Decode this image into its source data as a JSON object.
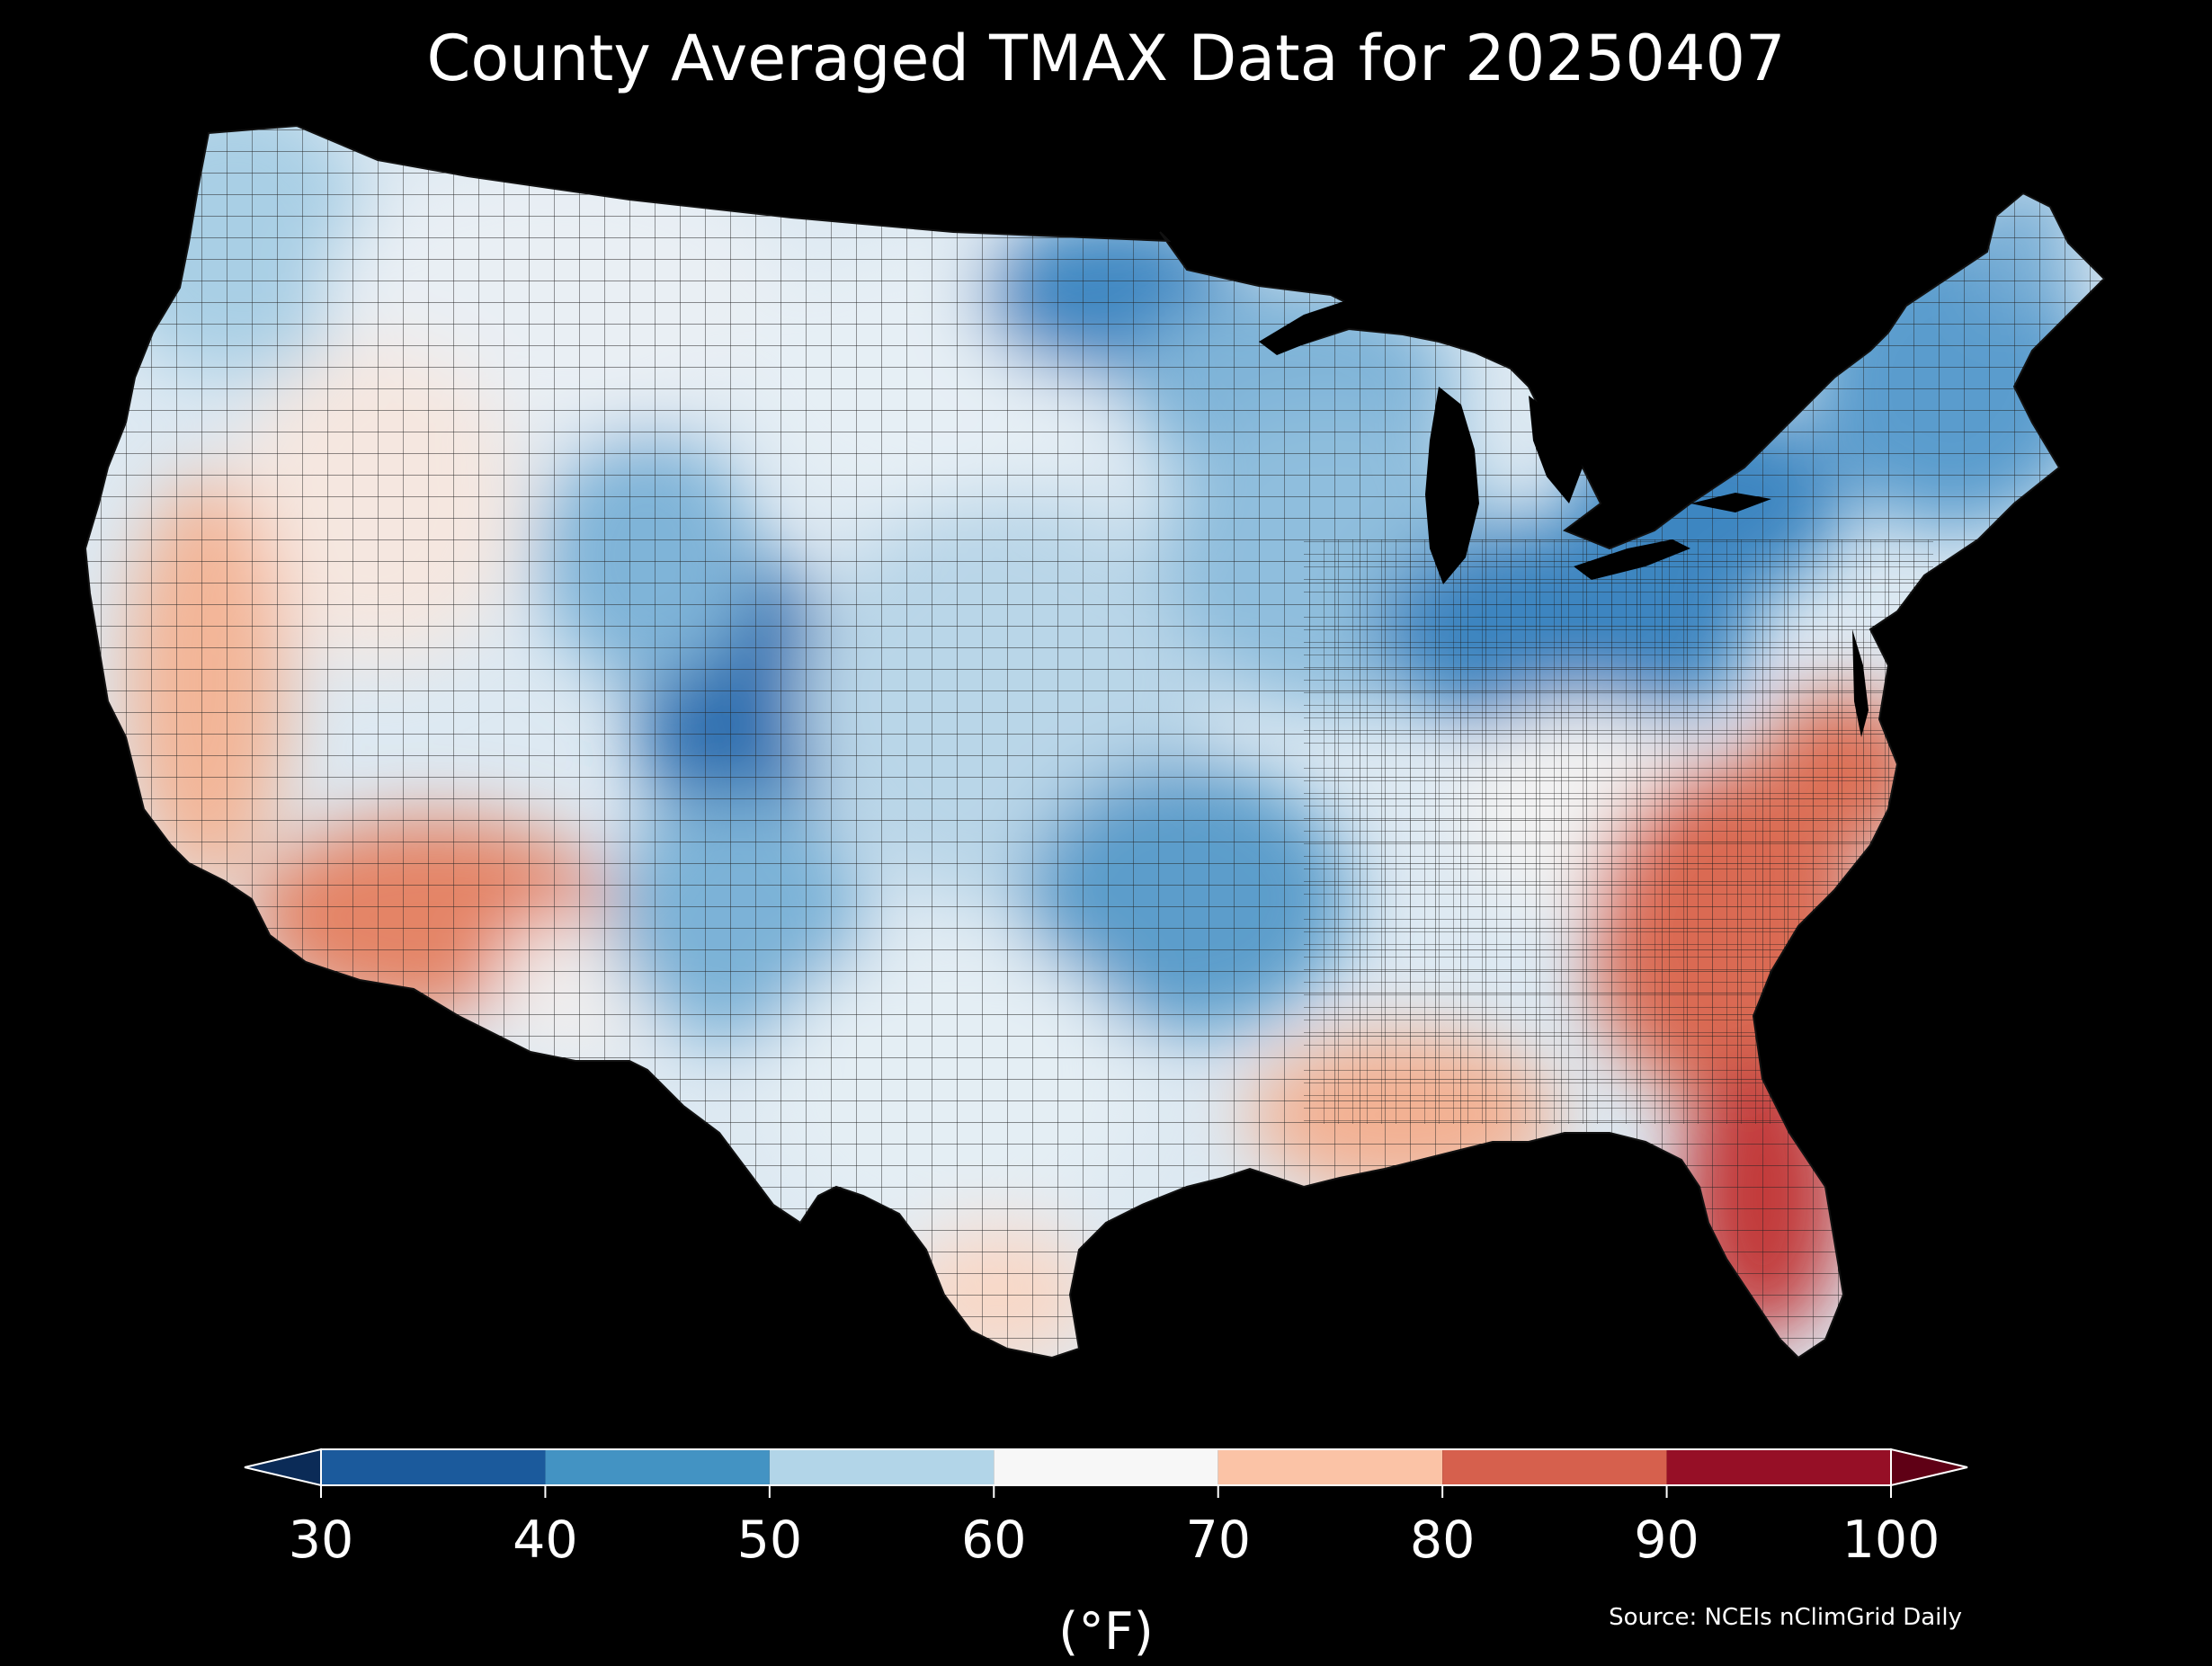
{
  "title": "County Averaged TMAX Data for 20250407",
  "colorbar": {
    "unit_label": "(°F)",
    "ticks": [
      "30",
      "40",
      "50",
      "60",
      "70",
      "80",
      "90",
      "100"
    ],
    "bins": [
      {
        "from": 30,
        "to": 40,
        "color": "#1b5a9c"
      },
      {
        "from": 40,
        "to": 50,
        "color": "#4393c3"
      },
      {
        "from": 50,
        "to": 60,
        "color": "#b2d5e8"
      },
      {
        "from": 60,
        "to": 70,
        "color": "#f7f7f7"
      },
      {
        "from": 70,
        "to": 80,
        "color": "#fbc3a6"
      },
      {
        "from": 80,
        "to": 90,
        "color": "#d6604d"
      },
      {
        "from": 90,
        "to": 100,
        "color": "#960f26"
      }
    ],
    "under_color": "#0b2b57",
    "over_color": "#5f0015"
  },
  "source": "Source: NCEIs nClimGrid Daily",
  "map": {
    "background": "#000000",
    "regions": [
      {
        "name": "pacific-northwest",
        "tmax": 52,
        "color": "#a9cfe5"
      },
      {
        "name": "northern-rockies",
        "tmax": 63,
        "color": "#e8eff5"
      },
      {
        "name": "california-coast",
        "tmax": 74,
        "color": "#f6c1a6"
      },
      {
        "name": "desert-southwest",
        "tmax": 84,
        "color": "#e08062"
      },
      {
        "name": "colorado-rockies",
        "tmax": 38,
        "color": "#2c6fb0"
      },
      {
        "name": "great-plains",
        "tmax": 57,
        "color": "#c9e0ee"
      },
      {
        "name": "upper-midwest",
        "tmax": 43,
        "color": "#3e86c1"
      },
      {
        "name": "ohio-valley",
        "tmax": 45,
        "color": "#4b93c7"
      },
      {
        "name": "northeast",
        "tmax": 46,
        "color": "#5a9ccd"
      },
      {
        "name": "texas-gulf",
        "tmax": 66,
        "color": "#f2f2f2"
      },
      {
        "name": "southeast",
        "tmax": 84,
        "color": "#dc6f55"
      },
      {
        "name": "florida",
        "tmax": 90,
        "color": "#c23a3a"
      }
    ]
  }
}
